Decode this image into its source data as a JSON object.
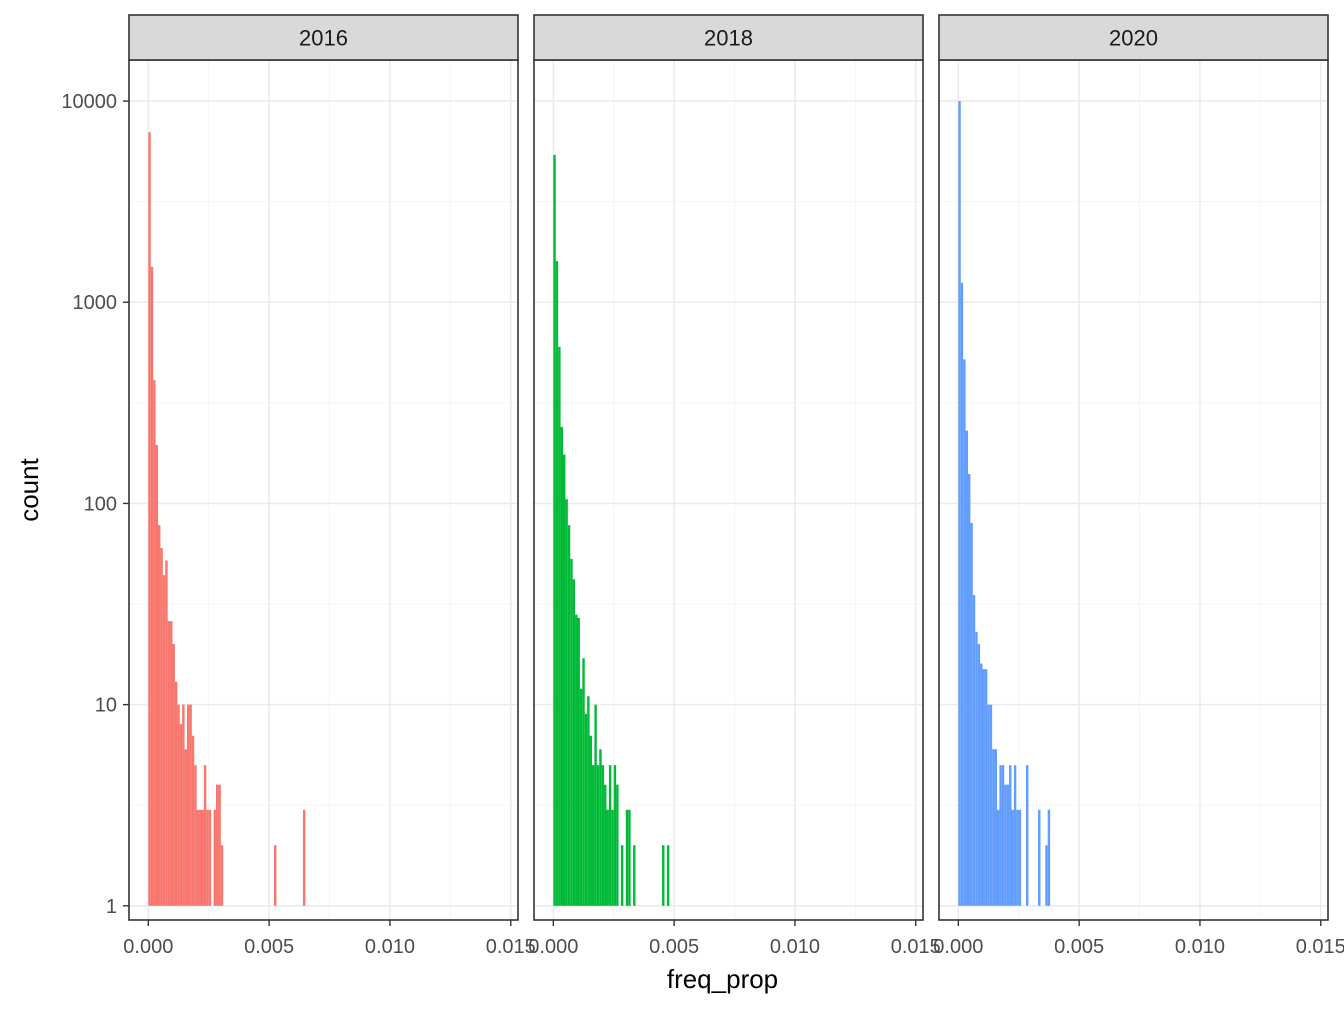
{
  "chart_data": {
    "type": "histogram",
    "facet_by": "year",
    "xlabel": "freq_prop",
    "ylabel": "count",
    "y_scale": "log10",
    "ylim": [
      0.85,
      16000
    ],
    "xlim": [
      -0.0008,
      0.0153
    ],
    "x_ticks": [
      0,
      0.005,
      0.01,
      0.015
    ],
    "x_tick_labels": [
      "0.000",
      "0.005",
      "0.010",
      "0.015"
    ],
    "y_ticks": [
      1,
      10,
      100,
      1000,
      10000
    ],
    "y_tick_labels": [
      "1",
      "10",
      "100",
      "1000",
      "10000"
    ],
    "bin_width": 0.0001,
    "grid": true,
    "legend": "none",
    "panels": [
      {
        "label": "2016",
        "color": "#F8766D",
        "bins": [
          {
            "x": 5e-05,
            "count": 7000
          },
          {
            "x": 0.00015,
            "count": 1500
          },
          {
            "x": 0.00025,
            "count": 410
          },
          {
            "x": 0.00035,
            "count": 195
          },
          {
            "x": 0.00045,
            "count": 78
          },
          {
            "x": 0.00055,
            "count": 60
          },
          {
            "x": 0.00065,
            "count": 44
          },
          {
            "x": 0.00075,
            "count": 52
          },
          {
            "x": 0.00085,
            "count": 26
          },
          {
            "x": 0.00095,
            "count": 26
          },
          {
            "x": 0.00105,
            "count": 20
          },
          {
            "x": 0.00115,
            "count": 13
          },
          {
            "x": 0.00125,
            "count": 10
          },
          {
            "x": 0.00135,
            "count": 8
          },
          {
            "x": 0.00145,
            "count": 10
          },
          {
            "x": 0.00155,
            "count": 6
          },
          {
            "x": 0.00165,
            "count": 10
          },
          {
            "x": 0.00175,
            "count": 10
          },
          {
            "x": 0.00185,
            "count": 7
          },
          {
            "x": 0.00195,
            "count": 5
          },
          {
            "x": 0.00205,
            "count": 3
          },
          {
            "x": 0.00215,
            "count": 3
          },
          {
            "x": 0.00225,
            "count": 3
          },
          {
            "x": 0.00235,
            "count": 5
          },
          {
            "x": 0.00245,
            "count": 3
          },
          {
            "x": 0.00255,
            "count": 3
          },
          {
            "x": 0.00275,
            "count": 3
          },
          {
            "x": 0.00285,
            "count": 4
          },
          {
            "x": 0.00295,
            "count": 4
          },
          {
            "x": 0.00305,
            "count": 2
          },
          {
            "x": 0.00525,
            "count": 2
          },
          {
            "x": 0.00645,
            "count": 3
          }
        ]
      },
      {
        "label": "2018",
        "color": "#00BA38",
        "bins": [
          {
            "x": 5e-05,
            "count": 5400
          },
          {
            "x": 0.00015,
            "count": 1600
          },
          {
            "x": 0.00025,
            "count": 600
          },
          {
            "x": 0.00035,
            "count": 240
          },
          {
            "x": 0.00045,
            "count": 175
          },
          {
            "x": 0.00055,
            "count": 105
          },
          {
            "x": 0.00065,
            "count": 78
          },
          {
            "x": 0.00075,
            "count": 53
          },
          {
            "x": 0.00085,
            "count": 42
          },
          {
            "x": 0.00095,
            "count": 28
          },
          {
            "x": 0.00105,
            "count": 27
          },
          {
            "x": 0.00115,
            "count": 12
          },
          {
            "x": 0.00125,
            "count": 17
          },
          {
            "x": 0.00135,
            "count": 9
          },
          {
            "x": 0.00145,
            "count": 11
          },
          {
            "x": 0.00155,
            "count": 7
          },
          {
            "x": 0.00165,
            "count": 5
          },
          {
            "x": 0.00175,
            "count": 10
          },
          {
            "x": 0.00185,
            "count": 5
          },
          {
            "x": 0.00195,
            "count": 6
          },
          {
            "x": 0.00205,
            "count": 5
          },
          {
            "x": 0.00215,
            "count": 4
          },
          {
            "x": 0.00225,
            "count": 3
          },
          {
            "x": 0.00235,
            "count": 5
          },
          {
            "x": 0.00245,
            "count": 3
          },
          {
            "x": 0.00255,
            "count": 5
          },
          {
            "x": 0.00265,
            "count": 4
          },
          {
            "x": 0.00285,
            "count": 2
          },
          {
            "x": 0.00305,
            "count": 3
          },
          {
            "x": 0.00315,
            "count": 3
          },
          {
            "x": 0.00335,
            "count": 2
          },
          {
            "x": 0.00455,
            "count": 2
          },
          {
            "x": 0.00475,
            "count": 2
          }
        ]
      },
      {
        "label": "2020",
        "color": "#619CFF",
        "bins": [
          {
            "x": 5e-05,
            "count": 10000
          },
          {
            "x": 0.00015,
            "count": 1250
          },
          {
            "x": 0.00025,
            "count": 520
          },
          {
            "x": 0.00035,
            "count": 230
          },
          {
            "x": 0.00045,
            "count": 140
          },
          {
            "x": 0.00055,
            "count": 80
          },
          {
            "x": 0.00065,
            "count": 35
          },
          {
            "x": 0.00075,
            "count": 23
          },
          {
            "x": 0.00085,
            "count": 20
          },
          {
            "x": 0.00095,
            "count": 16
          },
          {
            "x": 0.00105,
            "count": 15
          },
          {
            "x": 0.00115,
            "count": 15
          },
          {
            "x": 0.00125,
            "count": 10
          },
          {
            "x": 0.00135,
            "count": 10
          },
          {
            "x": 0.00145,
            "count": 6
          },
          {
            "x": 0.00155,
            "count": 6
          },
          {
            "x": 0.00165,
            "count": 3
          },
          {
            "x": 0.00175,
            "count": 5
          },
          {
            "x": 0.00185,
            "count": 5
          },
          {
            "x": 0.00195,
            "count": 4
          },
          {
            "x": 0.00205,
            "count": 4
          },
          {
            "x": 0.00215,
            "count": 5
          },
          {
            "x": 0.00225,
            "count": 3
          },
          {
            "x": 0.00235,
            "count": 5
          },
          {
            "x": 0.00245,
            "count": 3
          },
          {
            "x": 0.00255,
            "count": 3
          },
          {
            "x": 0.00285,
            "count": 5
          },
          {
            "x": 0.00335,
            "count": 3
          },
          {
            "x": 0.00365,
            "count": 2
          },
          {
            "x": 0.00375,
            "count": 3
          }
        ]
      }
    ]
  }
}
